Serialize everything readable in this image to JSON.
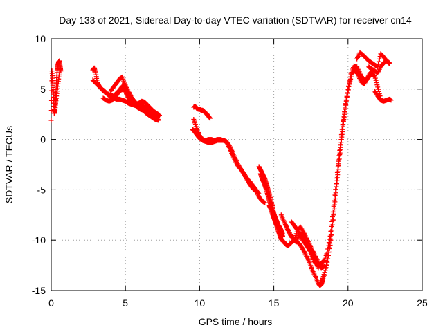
{
  "chart_data": {
    "type": "scatter",
    "title": "Day 133 of 2021, Sidereal Day-to-day VTEC variation (SDTVAR) for receiver cn14",
    "xlabel": "GPS time / hours",
    "ylabel": "SDTVAR / TECUs",
    "xlim": [
      0,
      25
    ],
    "ylim": [
      -15,
      10
    ],
    "xticks": [
      "0",
      "5",
      "10",
      "15",
      "20",
      "25"
    ],
    "yticks": [
      "-15",
      "-10",
      "-5",
      "0",
      "5",
      "10"
    ],
    "grid": true,
    "marker": "+",
    "series": [
      {
        "name": "SDTVAR",
        "color": "#ff0000",
        "tracks": [
          {
            "x": [
              0.0,
              0.05,
              0.1,
              0.15,
              0.2,
              0.25,
              0.3,
              0.35,
              0.4,
              0.45,
              0.5,
              0.55,
              0.6,
              0.65
            ],
            "y": [
              1.9,
              6.8,
              5.6,
              4.5,
              3.0,
              2.6,
              4.0,
              5.6,
              6.9,
              7.4,
              7.7,
              7.8,
              7.3,
              6.8
            ]
          },
          {
            "x": [
              0.2,
              0.3,
              0.4,
              0.5,
              0.6
            ],
            "y": [
              2.6,
              3.6,
              4.8,
              6.0,
              7.0
            ]
          },
          {
            "x": [
              2.8,
              2.9,
              3.0,
              3.1,
              3.2,
              3.4,
              3.6,
              3.8,
              4.0,
              4.2,
              4.4,
              4.6,
              4.8,
              5.0,
              5.2,
              5.4,
              5.6,
              5.8,
              6.0,
              6.2,
              6.4,
              6.6,
              6.8,
              7.0,
              7.2
            ],
            "y": [
              6.9,
              7.1,
              6.6,
              5.7,
              5.4,
              5.0,
              4.8,
              4.5,
              4.2,
              4.1,
              4.0,
              4.0,
              3.9,
              3.8,
              3.6,
              3.5,
              3.4,
              3.3,
              3.1,
              2.9,
              2.6,
              2.4,
              2.2,
              2.0,
              1.9
            ]
          },
          {
            "x": [
              2.8,
              3.0,
              3.2,
              3.4,
              3.6,
              3.8,
              4.0,
              4.2,
              4.4,
              4.6,
              4.8,
              5.0,
              5.2,
              5.4,
              5.6,
              5.8,
              6.0,
              6.2,
              6.4,
              6.6,
              6.8,
              7.0,
              7.2
            ],
            "y": [
              5.9,
              5.6,
              5.3,
              5.0,
              4.7,
              4.5,
              4.4,
              4.3,
              4.6,
              4.9,
              5.3,
              5.4,
              4.8,
              4.2,
              3.8,
              3.5,
              3.4,
              3.3,
              3.1,
              2.8,
              2.5,
              2.3,
              2.3
            ]
          },
          {
            "x": [
              3.5,
              3.7,
              3.9,
              4.1,
              4.3,
              4.5,
              4.7,
              4.9,
              5.1,
              5.3,
              5.5,
              5.7,
              5.9,
              6.1,
              6.3,
              6.5,
              6.7,
              6.9,
              7.1,
              7.3
            ],
            "y": [
              4.1,
              3.9,
              3.8,
              3.9,
              4.2,
              4.6,
              4.9,
              5.0,
              4.4,
              3.9,
              3.6,
              3.5,
              3.6,
              3.8,
              3.7,
              3.4,
              3.1,
              2.8,
              2.6,
              2.4
            ]
          },
          {
            "x": [
              4.0,
              4.2,
              4.4,
              4.6,
              4.8,
              5.0,
              5.2,
              5.4,
              5.6,
              5.8,
              6.0,
              6.2,
              6.4,
              6.6,
              6.8,
              7.0,
              7.2
            ],
            "y": [
              4.8,
              5.2,
              5.6,
              6.0,
              6.2,
              5.2,
              4.2,
              3.8,
              3.5,
              3.2,
              3.0,
              2.9,
              2.7,
              2.5,
              2.3,
              2.1,
              2.0
            ]
          },
          {
            "x": [
              9.6,
              9.7,
              9.8,
              9.9,
              10.0,
              10.1,
              10.2,
              10.3,
              10.4,
              10.5,
              10.6,
              10.7
            ],
            "y": [
              3.2,
              3.3,
              3.1,
              3.0,
              3.0,
              2.9,
              2.9,
              2.8,
              2.6,
              2.5,
              2.3,
              2.1
            ]
          },
          {
            "x": [
              9.5,
              9.6,
              9.7,
              9.8,
              9.9,
              10.0,
              10.2,
              10.4,
              10.6,
              10.8,
              11.0,
              11.2,
              11.4,
              11.6,
              11.8,
              12.0,
              12.2,
              12.4,
              12.6,
              12.8,
              13.0,
              13.2,
              13.4,
              13.6,
              13.8,
              14.0,
              14.2,
              14.4
            ],
            "y": [
              1.0,
              0.9,
              0.7,
              0.5,
              0.3,
              0.1,
              -0.1,
              -0.2,
              -0.3,
              -0.3,
              -0.2,
              -0.1,
              -0.1,
              -0.1,
              -0.2,
              -0.8,
              -1.5,
              -2.1,
              -2.7,
              -3.0,
              -3.5,
              -4.0,
              -4.5,
              -4.9,
              -5.1,
              -5.7,
              -6.1,
              -6.3
            ]
          },
          {
            "x": [
              9.6,
              9.8,
              10.0,
              10.2,
              10.4,
              10.6,
              10.8,
              11.0,
              11.2,
              11.4,
              11.6,
              11.8,
              12.0,
              12.2,
              12.4,
              12.6,
              12.8,
              13.0,
              13.2,
              13.4,
              13.6,
              13.8,
              14.0
            ],
            "y": [
              2.0,
              1.1,
              0.4,
              0.0,
              -0.1,
              0.0,
              0.0,
              -0.1,
              0.0,
              0.0,
              -0.1,
              -0.2,
              -0.6,
              -1.2,
              -1.9,
              -2.5,
              -3.0,
              -3.4,
              -3.9,
              -4.2,
              -4.6,
              -5.0,
              -5.4
            ]
          },
          {
            "x": [
              14.0,
              14.1,
              14.2,
              14.3,
              14.4,
              14.5,
              14.6,
              14.7,
              14.8,
              14.9,
              15.0,
              15.1,
              15.2,
              15.3,
              15.4,
              15.5,
              15.6
            ],
            "y": [
              -2.7,
              -3.0,
              -3.3,
              -3.6,
              -3.9,
              -4.4,
              -4.9,
              -5.4,
              -6.0,
              -6.6,
              -7.3,
              -7.8,
              -8.2,
              -8.6,
              -8.9,
              -9.4,
              -9.6
            ]
          },
          {
            "x": [
              14.1,
              14.2,
              14.3,
              14.4,
              14.5,
              14.6,
              14.7,
              14.8,
              14.9,
              15.0,
              15.1,
              15.2,
              15.3,
              15.4,
              15.5,
              15.6
            ],
            "y": [
              -3.4,
              -3.9,
              -4.2,
              -4.6,
              -5.0,
              -5.6,
              -6.1,
              -6.6,
              -7.1,
              -7.4,
              -7.8,
              -8.1,
              -8.5,
              -8.7,
              -9.0,
              -9.4
            ]
          },
          {
            "x": [
              14.7,
              14.8,
              14.9,
              15.0,
              15.1,
              15.2,
              15.3,
              15.4,
              15.5,
              15.6,
              15.7,
              15.8,
              15.9,
              16.0,
              16.2,
              16.4,
              16.6,
              16.8,
              17.0,
              17.2,
              17.4,
              17.6,
              17.8,
              18.0,
              18.1,
              18.2,
              18.3
            ],
            "y": [
              -6.6,
              -6.9,
              -7.4,
              -7.8,
              -8.2,
              -8.6,
              -9.1,
              -9.5,
              -9.9,
              -10.1,
              -10.2,
              -10.4,
              -10.5,
              -10.5,
              -10.2,
              -10.0,
              -10.2,
              -10.5,
              -11.0,
              -11.6,
              -12.2,
              -13.0,
              -13.6,
              -14.3,
              -14.5,
              -14.4,
              -14.0
            ]
          },
          {
            "x": [
              15.5,
              15.7,
              15.9,
              16.1,
              16.3,
              16.5,
              16.7,
              16.9,
              17.1,
              17.3,
              17.5,
              17.7,
              17.9,
              18.1,
              18.3
            ],
            "y": [
              -7.5,
              -8.2,
              -8.8,
              -9.4,
              -9.8,
              -10.2,
              -9.5,
              -9.4,
              -9.9,
              -10.7,
              -11.3,
              -12.1,
              -12.4,
              -12.5,
              -12.7
            ]
          },
          {
            "x": [
              15.8,
              16.0,
              16.2,
              16.4,
              16.6,
              16.8,
              17.0,
              17.2,
              17.4,
              17.6,
              17.8,
              18.0,
              18.2,
              18.4
            ],
            "y": [
              -8.5,
              -9.2,
              -9.7,
              -9.9,
              -9.0,
              -8.7,
              -9.2,
              -9.8,
              -10.4,
              -11.0,
              -11.6,
              -12.2,
              -12.8,
              -12.6
            ]
          },
          {
            "x": [
              16.2,
              16.4,
              16.6,
              16.8,
              17.0,
              17.2,
              17.4,
              17.6,
              17.8,
              18.0
            ],
            "y": [
              -8.2,
              -8.6,
              -9.0,
              -9.6,
              -10.1,
              -10.5,
              -10.9,
              -11.5,
              -12.0,
              -12.8
            ]
          },
          {
            "x": [
              18.2,
              18.4,
              18.6,
              18.8,
              19.0,
              19.2,
              19.4,
              19.6,
              19.8,
              20.0,
              20.2,
              20.4,
              20.6,
              20.8,
              21.0,
              21.2,
              21.4,
              21.6,
              21.8,
              22.0,
              22.2
            ],
            "y": [
              -14.2,
              -13.5,
              -12.2,
              -10.5,
              -8.0,
              -5.0,
              -2.0,
              0.5,
              3.0,
              5.0,
              6.5,
              7.3,
              7.2,
              6.6,
              6.0,
              5.8,
              6.2,
              6.5,
              6.3,
              5.2,
              4.1
            ]
          },
          {
            "x": [
              18.3,
              18.5,
              18.7,
              18.9,
              19.1,
              19.3,
              19.5,
              19.7,
              19.9,
              20.1,
              20.3,
              20.5,
              20.7,
              20.9,
              21.1,
              21.3,
              21.5,
              21.7
            ],
            "y": [
              -13.8,
              -12.8,
              -11.2,
              -9.0,
              -6.5,
              -3.5,
              -0.8,
              1.8,
              3.9,
              5.6,
              6.6,
              6.9,
              6.3,
              5.7,
              5.5,
              6.1,
              6.6,
              6.9
            ]
          },
          {
            "x": [
              18.0,
              18.2,
              18.4,
              18.6,
              18.8,
              19.0,
              19.2,
              19.4,
              19.6,
              19.8,
              20.0,
              20.2
            ],
            "y": [
              -12.5,
              -12.3,
              -12.0,
              -11.2,
              -9.6,
              -7.2,
              -4.4,
              -1.6,
              1.0,
              3.2,
              5.0,
              6.2
            ]
          },
          {
            "x": [
              20.6,
              20.8,
              21.0,
              21.2,
              21.4,
              21.6,
              21.8,
              22.0,
              22.2,
              22.4,
              22.6,
              22.8
            ],
            "y": [
              8.0,
              8.6,
              8.4,
              8.1,
              7.8,
              7.6,
              7.4,
              7.2,
              8.5,
              8.2,
              7.8,
              7.5
            ]
          },
          {
            "x": [
              21.4,
              21.6,
              21.8,
              22.0,
              22.2,
              22.4,
              22.6,
              22.8
            ],
            "y": [
              7.2,
              7.0,
              6.8,
              6.6,
              7.2,
              7.6,
              7.8,
              7.6
            ]
          },
          {
            "x": [
              21.8,
              22.0,
              22.2,
              22.4,
              22.6,
              22.8,
              22.9
            ],
            "y": [
              4.8,
              4.3,
              3.9,
              3.8,
              3.9,
              4.0,
              3.9
            ]
          }
        ]
      }
    ]
  }
}
